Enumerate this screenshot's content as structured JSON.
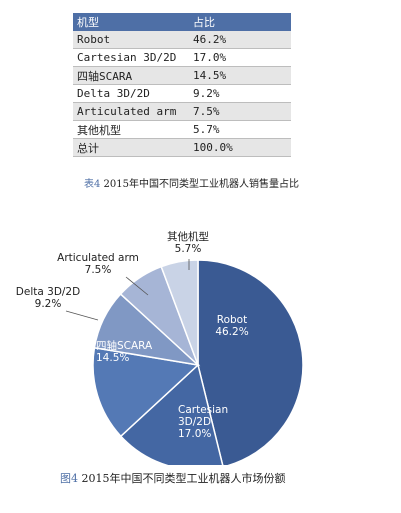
{
  "table": {
    "headers": [
      "机型",
      "占比"
    ],
    "rows": [
      [
        "Robot",
        "46.2%"
      ],
      [
        "Cartesian 3D/2D",
        "17.0%"
      ],
      [
        "四轴SCARA",
        "14.5%"
      ],
      [
        "Delta 3D/2D",
        "9.2%"
      ],
      [
        "Articulated arm",
        "7.5%"
      ],
      [
        "其他机型",
        "5.7%"
      ],
      [
        "总计",
        "100.0%"
      ]
    ],
    "caption_label": "表4",
    "caption_text": " 2015年中国不同类型工业机器人销售量占比"
  },
  "pie_caption": {
    "label": "图4",
    "text": " 2015年中国不同类型工业机器人市场份额"
  },
  "chart_data": {
    "type": "pie",
    "slices": [
      {
        "name": "Robot",
        "value": 46.2,
        "label": "46.2%",
        "color": "#3a5a93"
      },
      {
        "name": "Cartesian 3D/2D",
        "value": 17.0,
        "label": "17.0%",
        "color": "#4467a3"
      },
      {
        "name": "四轴SCARA",
        "value": 14.5,
        "label": "14.5%",
        "color": "#5479b5"
      },
      {
        "name": "Delta 3D/2D",
        "value": 9.2,
        "label": "9.2%",
        "color": "#8098c4"
      },
      {
        "name": "Articulated arm",
        "value": 7.5,
        "label": "7.5%",
        "color": "#a6b5d6"
      },
      {
        "name": "其他机型",
        "value": 5.7,
        "label": "5.7%",
        "color": "#c9d3e6"
      }
    ]
  }
}
